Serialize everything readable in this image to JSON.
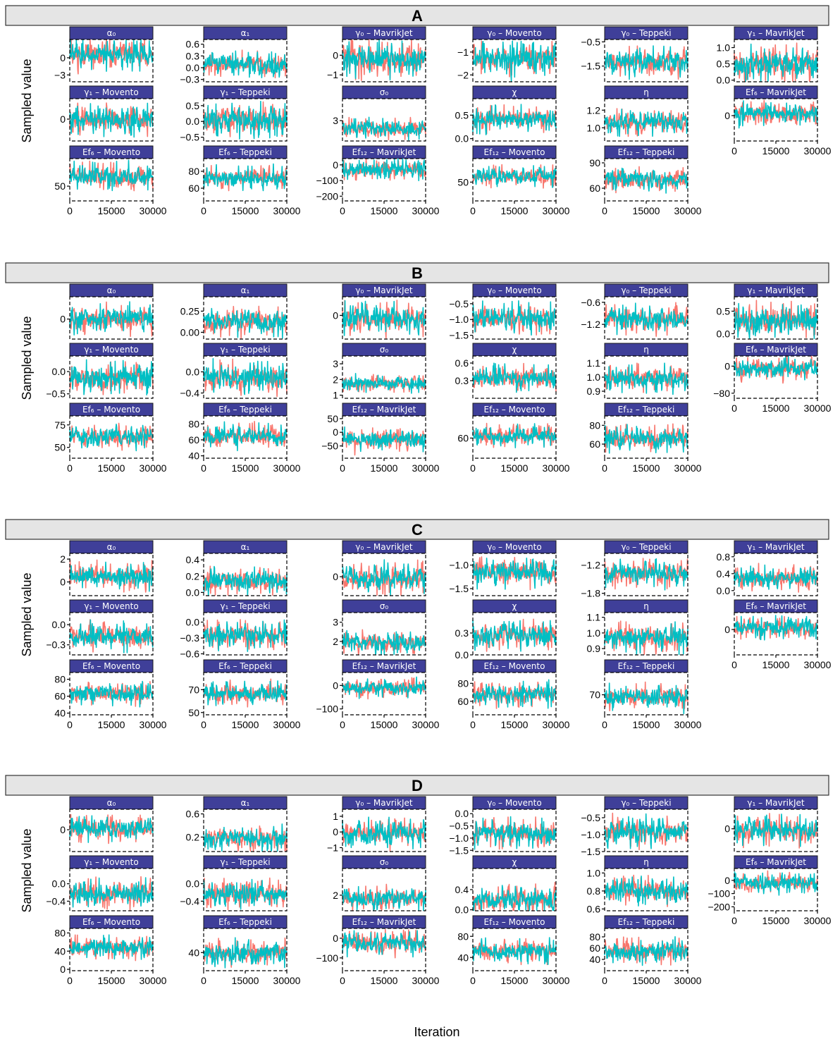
{
  "chart_data": {
    "type": "line",
    "subtitle": "",
    "xlabel": "Iteration",
    "ylabel": "Sampled value",
    "chain_colors": [
      "#F8766D",
      "#00BFC4"
    ],
    "strip_color": "#3F3F99",
    "panel_header_color": "#E5E5E5",
    "x_ticks": [
      0,
      15000,
      30000
    ],
    "xlim": [
      0,
      30000
    ],
    "grid": false,
    "legend": "none",
    "panels": [
      {
        "title": "A",
        "facets": [
          {
            "label": "α₀",
            "ylim": [
              -4.2,
              3.2
            ],
            "y_ticks": [
              0,
              -3
            ],
            "center": 0.6,
            "spread": 1.0
          },
          {
            "label": "α₁",
            "ylim": [
              -0.36,
              0.72
            ],
            "y_ticks": [
              0.6,
              0.3,
              0.0,
              -0.3
            ],
            "center": 0.08,
            "spread": 0.12
          },
          {
            "label": "γ₀ – MavrikJet",
            "ylim": [
              -1.35,
              0.8
            ],
            "y_ticks": [
              0,
              -1
            ],
            "center": -0.2,
            "spread": 0.35
          },
          {
            "label": "γ₀ – Movento",
            "ylim": [
              -2.3,
              -0.45
            ],
            "y_ticks": [
              -1,
              -2
            ],
            "center": -1.3,
            "spread": 0.25
          },
          {
            "label": "γ₀ – Teppeki",
            "ylim": [
              -2.15,
              -0.4
            ],
            "y_ticks": [
              -0.5,
              -1.5
            ],
            "center": -1.35,
            "spread": 0.22
          },
          {
            "label": "γ₁ – MavrikJet",
            "ylim": [
              -0.05,
              1.25
            ],
            "y_ticks": [
              1.0,
              0.5,
              0.0
            ],
            "center": 0.5,
            "spread": 0.2
          },
          {
            "label": "γ₁ – Movento",
            "ylim": [
              -1.5,
              1.4
            ],
            "y_ticks": [
              0
            ],
            "center": 0.0,
            "spread": 0.4
          },
          {
            "label": "γ₁ – Teppeki",
            "ylim": [
              -0.62,
              0.72
            ],
            "y_ticks": [
              0.5,
              0.0,
              -0.5
            ],
            "center": 0.05,
            "spread": 0.2
          },
          {
            "label": "σ₀",
            "ylim": [
              1.7,
              4.4
            ],
            "y_ticks": [
              3
            ],
            "center": 2.5,
            "spread": 0.25
          },
          {
            "label": "χ",
            "ylim": [
              -0.05,
              0.85
            ],
            "y_ticks": [
              0.5,
              0.0
            ],
            "center": 0.42,
            "spread": 0.1
          },
          {
            "label": "η",
            "ylim": [
              0.85,
              1.33
            ],
            "y_ticks": [
              1.2,
              1.0
            ],
            "center": 1.06,
            "spread": 0.05
          },
          {
            "label": "Ef₆ – MavrikJet",
            "ylim": [
              -120,
              80
            ],
            "y_ticks": [
              0
            ],
            "center": 10,
            "spread": 20
          },
          {
            "label": "Ef₆ – Movento",
            "ylim": [
              35,
              78
            ],
            "y_ticks": [
              50
            ],
            "center": 60,
            "spread": 5
          },
          {
            "label": "Ef₆ – Teppeki",
            "ylim": [
              45,
              95
            ],
            "y_ticks": [
              80,
              60
            ],
            "center": 72,
            "spread": 5
          },
          {
            "label": "Ef₁₂ – MavrikJet",
            "ylim": [
              -230,
              40
            ],
            "y_ticks": [
              0,
              -100,
              -200
            ],
            "center": -30,
            "spread": 25
          },
          {
            "label": "Ef₁₂ – Movento",
            "ylim": [
              30,
              75
            ],
            "y_ticks": [
              50
            ],
            "center": 56,
            "spread": 4
          },
          {
            "label": "Ef₁₂ – Teppeki",
            "ylim": [
              45,
              95
            ],
            "y_ticks": [
              90,
              60
            ],
            "center": 70,
            "spread": 5
          }
        ]
      },
      {
        "title": "B",
        "facets": [
          {
            "label": "α₀",
            "ylim": [
              -1.8,
              2.0
            ],
            "y_ticks": [
              0
            ],
            "center": 0.0,
            "spread": 0.5
          },
          {
            "label": "α₁",
            "ylim": [
              -0.08,
              0.42
            ],
            "y_ticks": [
              0.25,
              0.0
            ],
            "center": 0.12,
            "spread": 0.06
          },
          {
            "label": "γ₀ – MavrikJet",
            "ylim": [
              -1.4,
              1.1
            ],
            "y_ticks": [
              0
            ],
            "center": -0.2,
            "spread": 0.35
          },
          {
            "label": "γ₀ – Movento",
            "ylim": [
              -1.62,
              -0.28
            ],
            "y_ticks": [
              -0.5,
              -1.0,
              -1.5
            ],
            "center": -0.95,
            "spread": 0.17
          },
          {
            "label": "γ₀ – Teppeki",
            "ylim": [
              -1.6,
              -0.45
            ],
            "y_ticks": [
              -0.6,
              -1.2
            ],
            "center": -1.05,
            "spread": 0.14
          },
          {
            "label": "γ₁ – MavrikJet",
            "ylim": [
              -0.12,
              0.82
            ],
            "y_ticks": [
              0.5,
              0.0
            ],
            "center": 0.3,
            "spread": 0.14
          },
          {
            "label": "γ₁ – Movento",
            "ylim": [
              -0.6,
              0.35
            ],
            "y_ticks": [
              0.0,
              -0.5
            ],
            "center": -0.15,
            "spread": 0.13
          },
          {
            "label": "γ₁ – Teppeki",
            "ylim": [
              -0.5,
              0.3
            ],
            "y_ticks": [
              0.0,
              -0.4
            ],
            "center": -0.1,
            "spread": 0.11
          },
          {
            "label": "σ₀",
            "ylim": [
              0.8,
              3.5
            ],
            "y_ticks": [
              3,
              2,
              1
            ],
            "center": 1.75,
            "spread": 0.2
          },
          {
            "label": "χ",
            "ylim": [
              0.0,
              0.72
            ],
            "y_ticks": [
              0.6,
              0.3
            ],
            "center": 0.35,
            "spread": 0.08
          },
          {
            "label": "η",
            "ylim": [
              0.85,
              1.15
            ],
            "y_ticks": [
              1.1,
              1.0,
              0.9
            ],
            "center": 0.99,
            "spread": 0.035
          },
          {
            "label": "Ef₆ – MavrikJet",
            "ylim": [
              -95,
              30
            ],
            "y_ticks": [
              0,
              -80
            ],
            "center": -8,
            "spread": 13
          },
          {
            "label": "Ef₆ – Movento",
            "ylim": [
              38,
              85
            ],
            "y_ticks": [
              75,
              50
            ],
            "center": 62,
            "spread": 5
          },
          {
            "label": "Ef₆ – Teppeki",
            "ylim": [
              37,
              90
            ],
            "y_ticks": [
              80,
              60,
              40
            ],
            "center": 64,
            "spread": 6
          },
          {
            "label": "Ef₁₂ – MavrikJet",
            "ylim": [
              -95,
              60
            ],
            "y_ticks": [
              50,
              0,
              -50
            ],
            "center": -25,
            "spread": 15
          },
          {
            "label": "Ef₁₂ – Movento",
            "ylim": [
              40,
              82
            ],
            "y_ticks": [
              60
            ],
            "center": 62,
            "spread": 4
          },
          {
            "label": "Ef₁₂ – Teppeki",
            "ylim": [
              45,
              90
            ],
            "y_ticks": [
              80,
              60
            ],
            "center": 66,
            "spread": 5
          }
        ]
      },
      {
        "title": "C",
        "facets": [
          {
            "label": "α₀",
            "ylim": [
              -1.2,
              2.5
            ],
            "y_ticks": [
              2,
              0
            ],
            "center": 0.5,
            "spread": 0.45
          },
          {
            "label": "α₁",
            "ylim": [
              -0.04,
              0.48
            ],
            "y_ticks": [
              0.4,
              0.2,
              0.0
            ],
            "center": 0.14,
            "spread": 0.06
          },
          {
            "label": "γ₀ – MavrikJet",
            "ylim": [
              -0.65,
              0.8
            ],
            "y_ticks": [
              0
            ],
            "center": -0.05,
            "spread": 0.2
          },
          {
            "label": "γ₀ – Movento",
            "ylim": [
              -1.65,
              -0.75
            ],
            "y_ticks": [
              -1.0,
              -1.5
            ],
            "center": -1.15,
            "spread": 0.12
          },
          {
            "label": "γ₀ – Teppeki",
            "ylim": [
              -1.85,
              -0.95
            ],
            "y_ticks": [
              -1.2,
              -1.8
            ],
            "center": -1.38,
            "spread": 0.11
          },
          {
            "label": "γ₁ – MavrikJet",
            "ylim": [
              -0.12,
              0.88
            ],
            "y_ticks": [
              0.8,
              0.4,
              0.0
            ],
            "center": 0.3,
            "spread": 0.12
          },
          {
            "label": "γ₁ – Movento",
            "ylim": [
              -0.45,
              0.18
            ],
            "y_ticks": [
              0.0,
              -0.3
            ],
            "center": -0.18,
            "spread": 0.08
          },
          {
            "label": "γ₁ – Teppeki",
            "ylim": [
              -0.62,
              0.18
            ],
            "y_ticks": [
              0.0,
              -0.3,
              -0.6
            ],
            "center": -0.25,
            "spread": 0.1
          },
          {
            "label": "σ₀",
            "ylim": [
              1.3,
              3.5
            ],
            "y_ticks": [
              3,
              2
            ],
            "center": 1.95,
            "spread": 0.22
          },
          {
            "label": "χ",
            "ylim": [
              0.0,
              0.58
            ],
            "y_ticks": [
              0.3,
              0.0
            ],
            "center": 0.27,
            "spread": 0.07
          },
          {
            "label": "η",
            "ylim": [
              0.86,
              1.13
            ],
            "y_ticks": [
              1.1,
              1.0,
              0.9
            ],
            "center": 0.97,
            "spread": 0.035
          },
          {
            "label": "Ef₆ – MavrikJet",
            "ylim": [
              -60,
              40
            ],
            "y_ticks": [
              0
            ],
            "center": 5,
            "spread": 10
          },
          {
            "label": "Ef₆ – Movento",
            "ylim": [
              38,
              88
            ],
            "y_ticks": [
              80,
              60,
              40
            ],
            "center": 63,
            "spread": 5
          },
          {
            "label": "Ef₆ – Teppeki",
            "ylim": [
              48,
              85
            ],
            "y_ticks": [
              70,
              50
            ],
            "center": 67,
            "spread": 4
          },
          {
            "label": "Ef₁₂ – MavrikJet",
            "ylim": [
              -125,
              55
            ],
            "y_ticks": [
              0,
              -100
            ],
            "center": -10,
            "spread": 15
          },
          {
            "label": "Ef₁₂ – Movento",
            "ylim": [
              45,
              92
            ],
            "y_ticks": [
              80,
              60
            ],
            "center": 68,
            "spread": 5
          },
          {
            "label": "Ef₁₂ – Teppeki",
            "ylim": [
              52,
              90
            ],
            "y_ticks": [
              70
            ],
            "center": 68,
            "spread": 4
          }
        ]
      },
      {
        "title": "D",
        "facets": [
          {
            "label": "α₀",
            "ylim": [
              -1.6,
              1.5
            ],
            "y_ticks": [
              0
            ],
            "center": 0.1,
            "spread": 0.35
          },
          {
            "label": "α₁",
            "ylim": [
              -0.05,
              0.68
            ],
            "y_ticks": [
              0.6,
              0.2
            ],
            "center": 0.18,
            "spread": 0.08
          },
          {
            "label": "γ₀ – MavrikJet",
            "ylim": [
              -1.25,
              1.45
            ],
            "y_ticks": [
              1,
              0,
              -1
            ],
            "center": -0.1,
            "spread": 0.35
          },
          {
            "label": "γ₀ – Movento",
            "ylim": [
              -1.55,
              0.18
            ],
            "y_ticks": [
              0.0,
              -0.5,
              -1.0,
              -1.5
            ],
            "center": -0.8,
            "spread": 0.22
          },
          {
            "label": "γ₀ – Teppeki",
            "ylim": [
              -1.5,
              -0.25
            ],
            "y_ticks": [
              -0.5,
              -1.0,
              -1.5
            ],
            "center": -0.9,
            "spread": 0.17
          },
          {
            "label": "γ₁ – MavrikJet",
            "ylim": [
              -0.7,
              0.6
            ],
            "y_ticks": [
              0
            ],
            "center": -0.05,
            "spread": 0.17
          },
          {
            "label": "γ₁ – Movento",
            "ylim": [
              -0.62,
              0.35
            ],
            "y_ticks": [
              0.0,
              -0.4
            ],
            "center": -0.22,
            "spread": 0.12
          },
          {
            "label": "γ₁ – Teppeki",
            "ylim": [
              -0.62,
              0.35
            ],
            "y_ticks": [
              0.0,
              -0.4
            ],
            "center": -0.25,
            "spread": 0.12
          },
          {
            "label": "σ₀",
            "ylim": [
              1.3,
              3.2
            ],
            "y_ticks": [
              2
            ],
            "center": 1.85,
            "spread": 0.2
          },
          {
            "label": "χ",
            "ylim": [
              -0.02,
              0.82
            ],
            "y_ticks": [
              0.4,
              0.0
            ],
            "center": 0.2,
            "spread": 0.1
          },
          {
            "label": "η",
            "ylim": [
              0.58,
              1.05
            ],
            "y_ticks": [
              1.0,
              0.8,
              0.6
            ],
            "center": 0.8,
            "spread": 0.055
          },
          {
            "label": "Ef₆ – MavrikJet",
            "ylim": [
              -230,
              90
            ],
            "y_ticks": [
              0,
              -100,
              -200
            ],
            "center": -20,
            "spread": 30
          },
          {
            "label": "Ef₆ – Movento",
            "ylim": [
              -3,
              90
            ],
            "y_ticks": [
              80,
              40,
              0
            ],
            "center": 48,
            "spread": 9
          },
          {
            "label": "Ef₆ – Teppeki",
            "ylim": [
              10,
              80
            ],
            "y_ticks": [
              40
            ],
            "center": 40,
            "spread": 8
          },
          {
            "label": "Ef₁₂ – MavrikJet",
            "ylim": [
              -165,
              50
            ],
            "y_ticks": [
              0,
              -100
            ],
            "center": -25,
            "spread": 22
          },
          {
            "label": "Ef₁₂ – Movento",
            "ylim": [
              15,
              95
            ],
            "y_ticks": [
              80,
              40
            ],
            "center": 52,
            "spread": 8
          },
          {
            "label": "Ef₁₂ – Teppeki",
            "ylim": [
              20,
              95
            ],
            "y_ticks": [
              80,
              60,
              40
            ],
            "center": 55,
            "spread": 8
          }
        ]
      }
    ]
  }
}
